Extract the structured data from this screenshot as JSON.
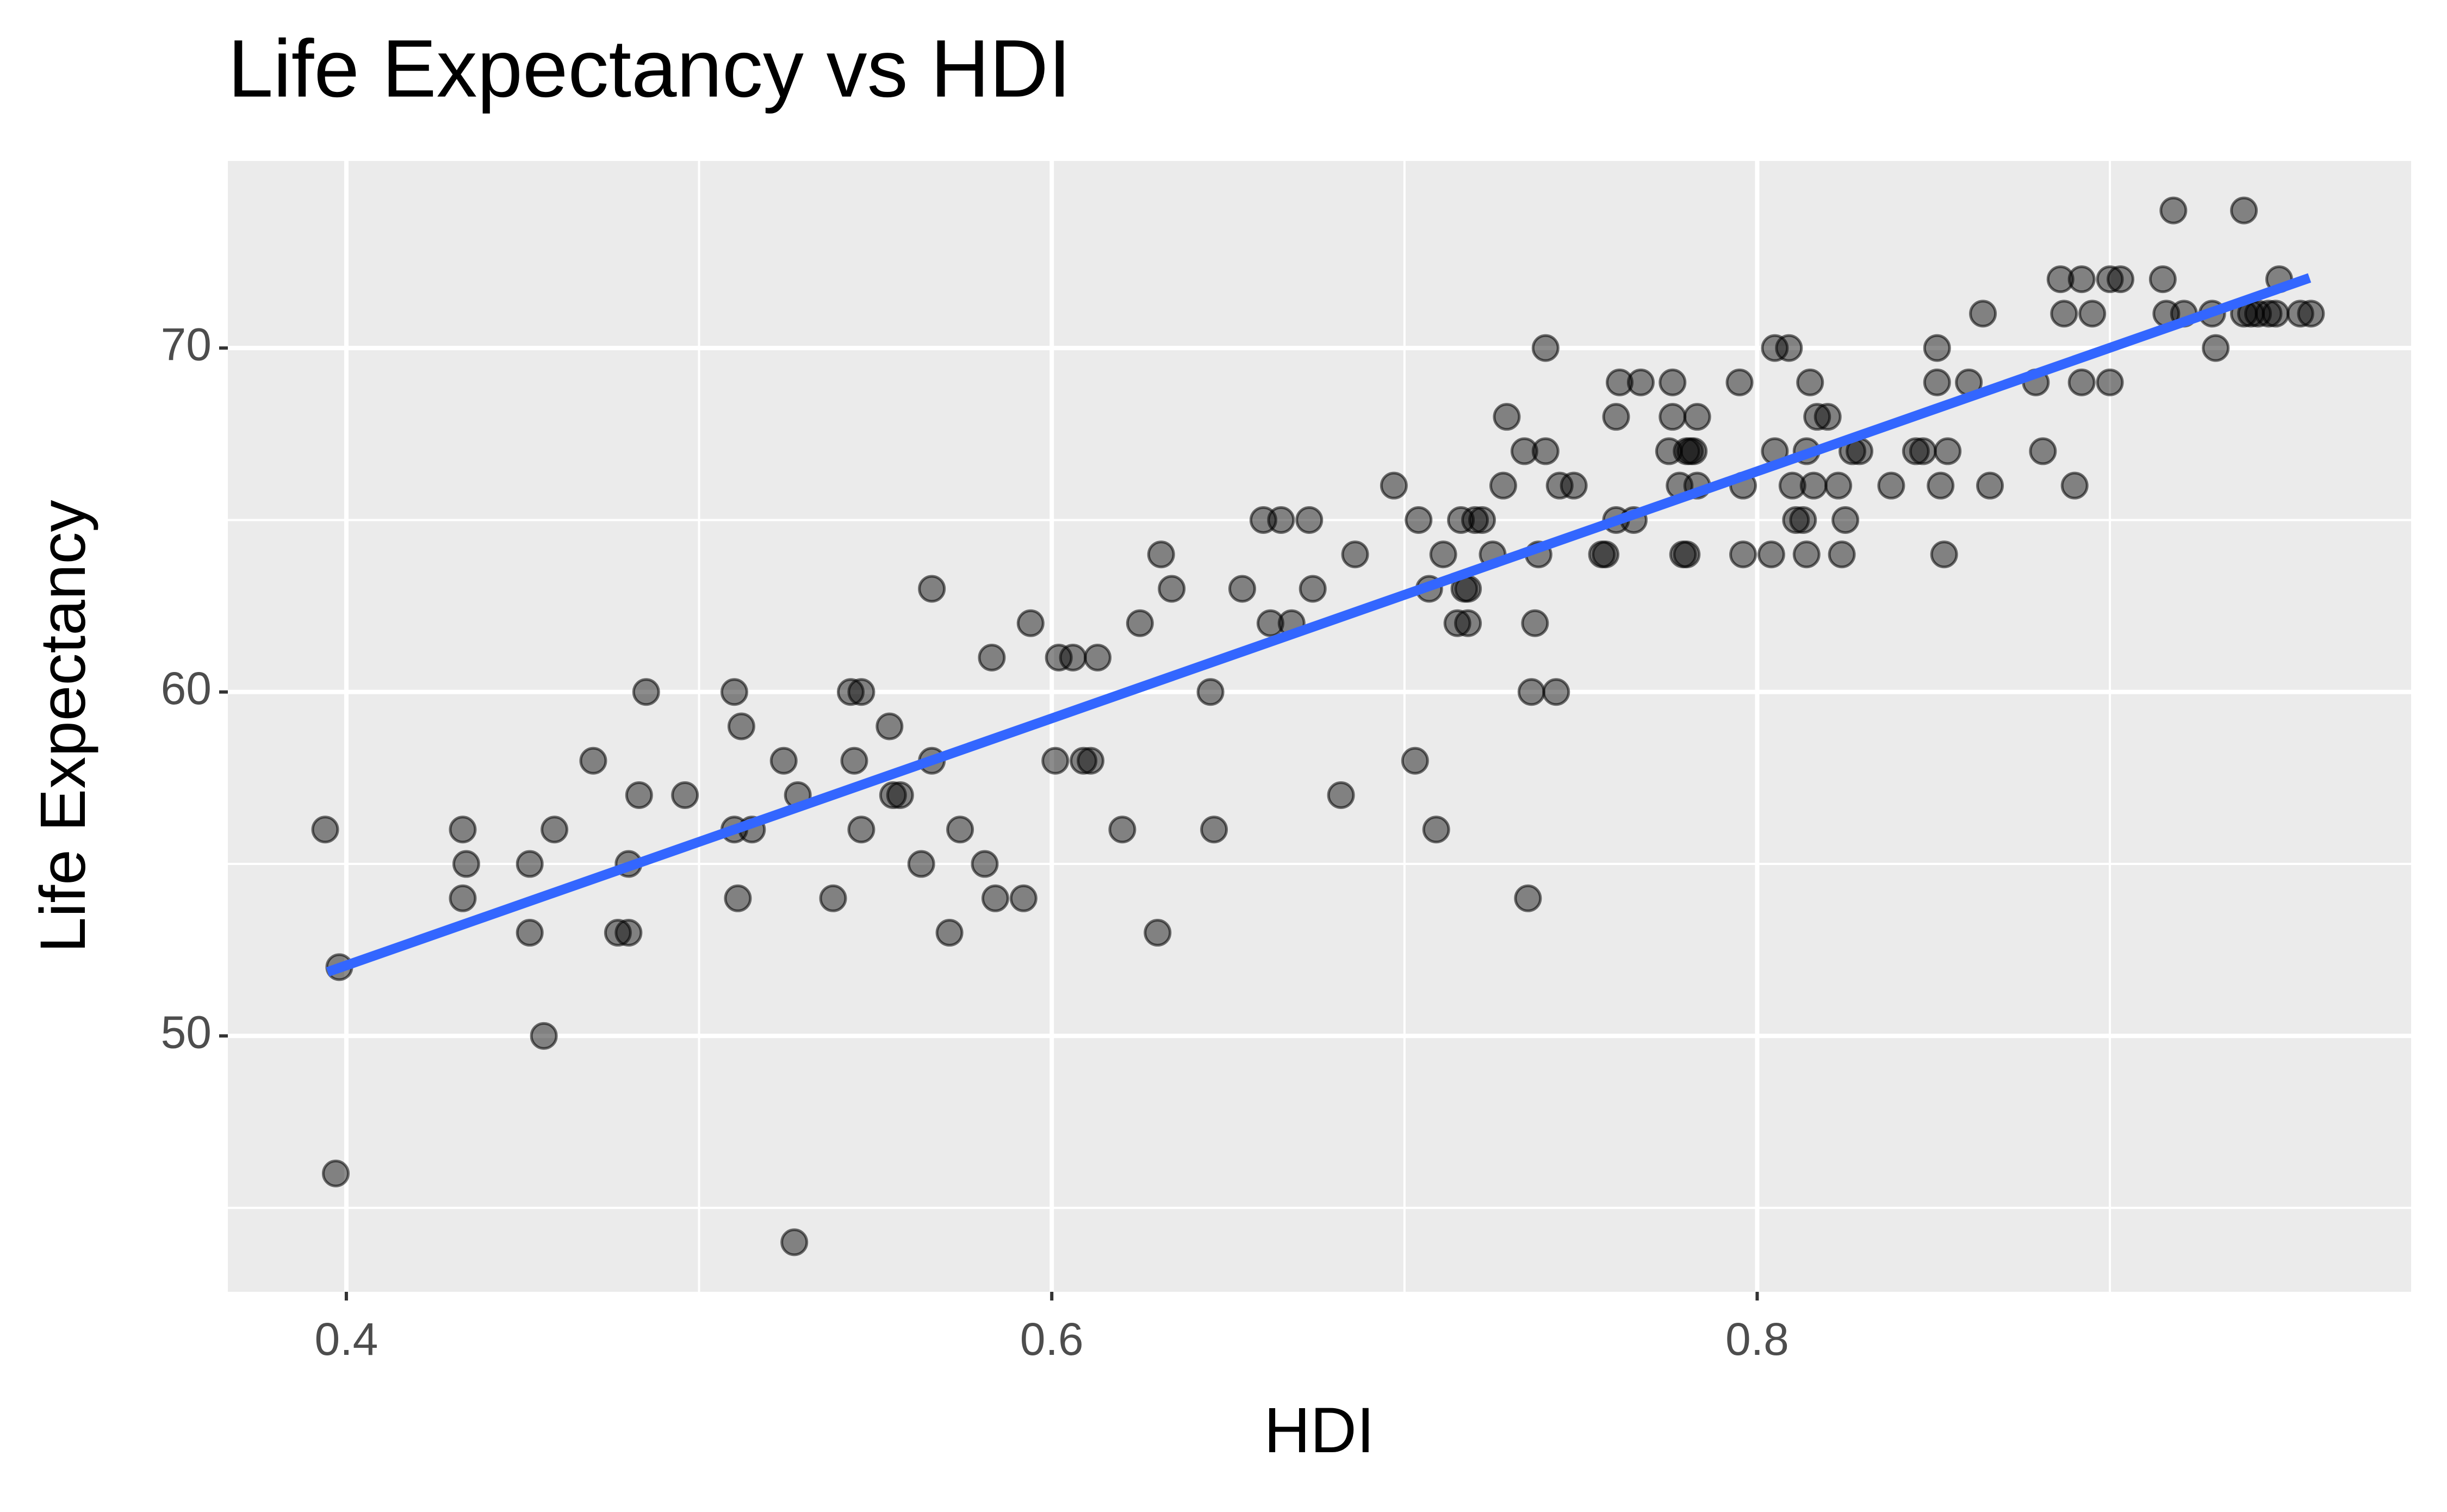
{
  "chart_data": {
    "type": "scatter",
    "title": "Life Expectancy vs HDI",
    "x_label": "HDI",
    "y_label": "Life Expectancy",
    "x": [
      0.394,
      0.397,
      0.398,
      0.433,
      0.434,
      0.433,
      0.452,
      0.452,
      0.456,
      0.459,
      0.47,
      0.477,
      0.48,
      0.48,
      0.483,
      0.485,
      0.496,
      0.51,
      0.51,
      0.511,
      0.512,
      0.515,
      0.524,
      0.527,
      0.528,
      0.538,
      0.543,
      0.546,
      0.544,
      0.546,
      0.554,
      0.555,
      0.557,
      0.563,
      0.566,
      0.566,
      0.571,
      0.574,
      0.581,
      0.583,
      0.584,
      0.592,
      0.594,
      0.601,
      0.602,
      0.606,
      0.609,
      0.611,
      0.613,
      0.62,
      0.625,
      0.63,
      0.631,
      0.634,
      0.645,
      0.646,
      0.654,
      0.66,
      0.662,
      0.665,
      0.668,
      0.673,
      0.674,
      0.682,
      0.686,
      0.697,
      0.703,
      0.704,
      0.707,
      0.709,
      0.711,
      0.715,
      0.716,
      0.717,
      0.718,
      0.718,
      0.72,
      0.722,
      0.725,
      0.728,
      0.729,
      0.734,
      0.735,
      0.736,
      0.737,
      0.738,
      0.74,
      0.74,
      0.743,
      0.744,
      0.748,
      0.756,
      0.757,
      0.76,
      0.76,
      0.761,
      0.765,
      0.767,
      0.776,
      0.776,
      0.775,
      0.778,
      0.779,
      0.78,
      0.78,
      0.781,
      0.783,
      0.783,
      0.782,
      0.795,
      0.796,
      0.796,
      0.804,
      0.805,
      0.805,
      0.809,
      0.81,
      0.811,
      0.813,
      0.814,
      0.814,
      0.815,
      0.816,
      0.817,
      0.82,
      0.823,
      0.824,
      0.825,
      0.827,
      0.829,
      0.838,
      0.845,
      0.847,
      0.851,
      0.851,
      0.852,
      0.853,
      0.854,
      0.86,
      0.864,
      0.866,
      0.879,
      0.881,
      0.886,
      0.887,
      0.89,
      0.892,
      0.892,
      0.895,
      0.9,
      0.9,
      0.903,
      0.915,
      0.916,
      0.918,
      0.921,
      0.929,
      0.93,
      0.938,
      0.938,
      0.94,
      0.942,
      0.945,
      0.947,
      0.948,
      0.954,
      0.957
    ],
    "values": [
      56,
      46,
      52,
      56,
      55,
      54,
      55,
      53,
      50,
      56,
      58,
      53,
      53,
      55,
      57,
      60,
      57,
      60,
      56,
      54,
      59,
      56,
      58,
      44,
      57,
      54,
      60,
      60,
      58,
      56,
      59,
      57,
      57,
      55,
      63,
      58,
      53,
      56,
      55,
      61,
      54,
      54,
      62,
      58,
      61,
      61,
      58,
      58,
      61,
      56,
      62,
      53,
      64,
      63,
      60,
      56,
      63,
      65,
      62,
      65,
      62,
      65,
      63,
      57,
      64,
      66,
      58,
      65,
      63,
      56,
      64,
      62,
      65,
      63,
      62,
      63,
      65,
      65,
      64,
      66,
      68,
      67,
      54,
      60,
      62,
      64,
      67,
      70,
      60,
      66,
      66,
      64,
      64,
      65,
      68,
      69,
      65,
      69,
      69,
      68,
      67,
      66,
      64,
      64,
      67,
      67,
      68,
      66,
      67,
      69,
      66,
      64,
      64,
      67,
      70,
      70,
      66,
      65,
      65,
      67,
      64,
      69,
      66,
      68,
      68,
      66,
      64,
      65,
      67,
      67,
      66,
      67,
      67,
      70,
      69,
      66,
      64,
      67,
      69,
      71,
      66,
      69,
      67,
      72,
      71,
      66,
      72,
      69,
      71,
      69,
      72,
      72,
      72,
      71,
      74,
      71,
      71,
      70,
      74,
      71,
      71,
      71,
      71,
      71,
      72,
      71,
      71
    ],
    "color": "#000000",
    "opacity": 0.45,
    "fit": {
      "x": [
        0.3947,
        0.9566
      ],
      "values": [
        51.86,
        72.04
      ],
      "color": "#3366FF"
    },
    "xlim": [
      0.3664,
      0.9854
    ],
    "ylim": [
      42.56,
      75.44
    ],
    "xticks": [
      0.4,
      0.6,
      0.8
    ],
    "yticks": [
      50,
      60,
      70
    ],
    "xminor": [
      0.5,
      0.7,
      0.9
    ],
    "yminor": [
      45,
      55,
      65
    ],
    "grid": true
  }
}
